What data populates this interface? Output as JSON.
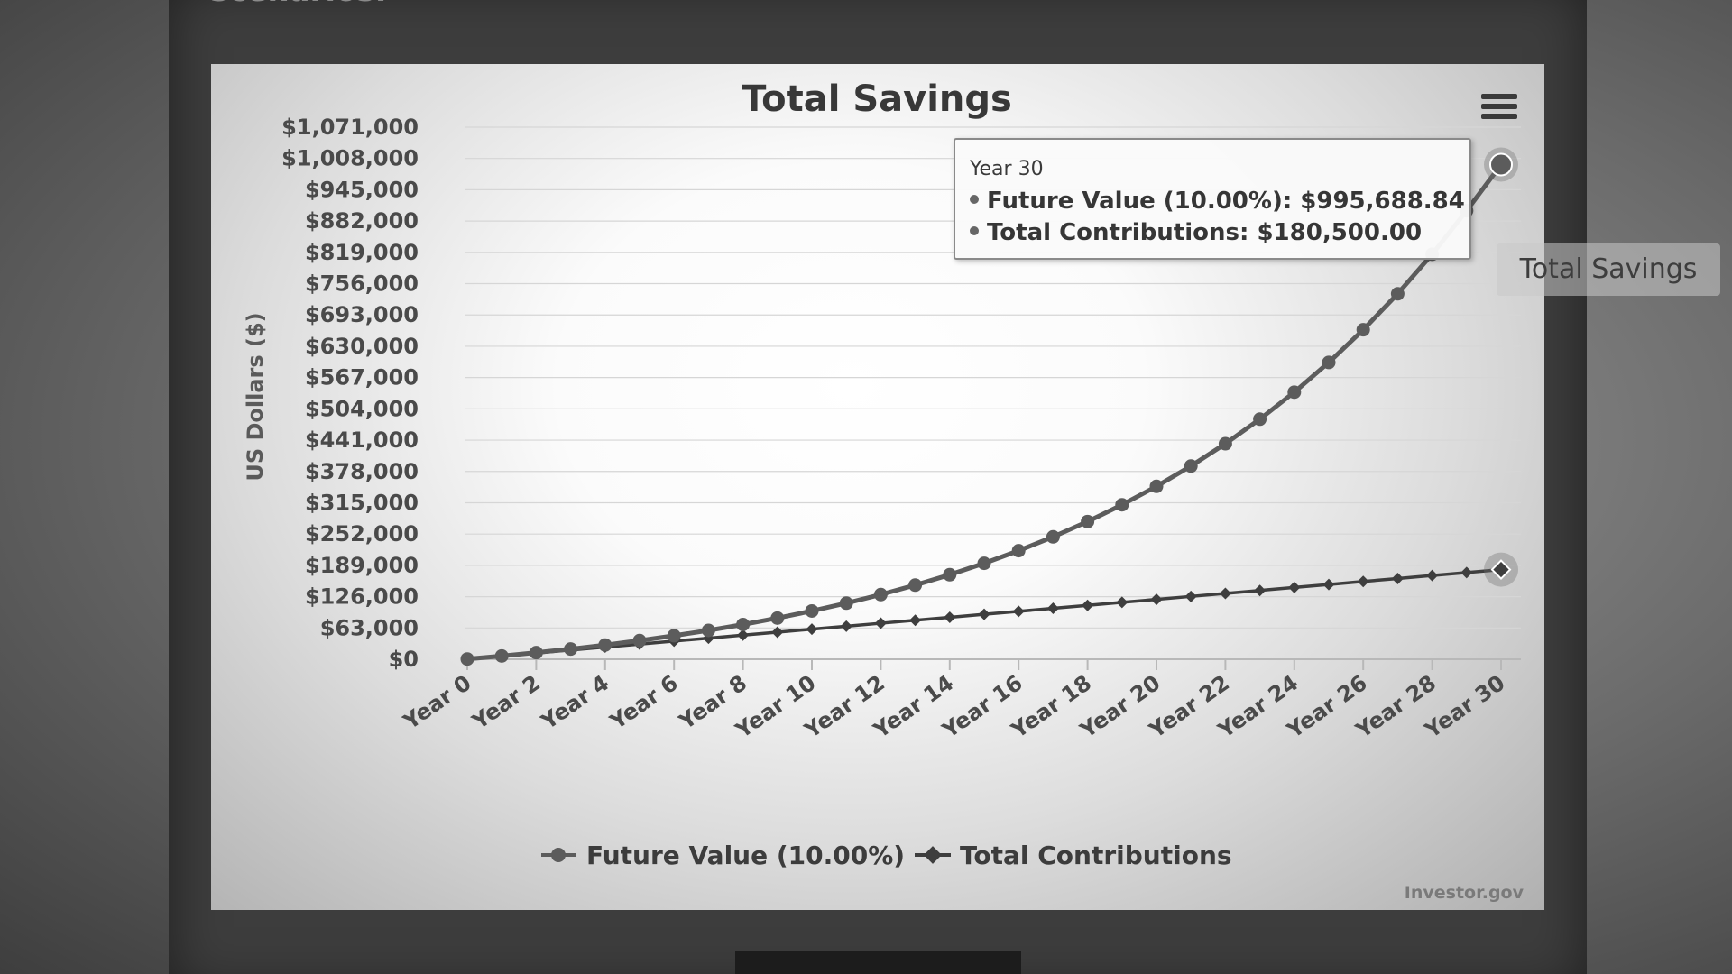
{
  "page": {
    "header_fragment": "scenarios.",
    "floating_label": "Total Savings"
  },
  "tooltip": {
    "header": "Year 30",
    "rows": [
      "Future Value (10.00%): $995,688.84",
      "Total Contributions: $180,500.00"
    ]
  },
  "credit": "Investor.gov",
  "colors": {
    "future_value": "#5c5c5c",
    "total_contributions": "#3e3e3e",
    "grid": "#d6d6d6"
  },
  "icons": {
    "menu": "hamburger-menu-icon"
  },
  "chart_data": {
    "type": "line",
    "title": "Total Savings",
    "ylabel": "US Dollars ($)",
    "xlabel": "",
    "ylim": [
      0,
      1071000
    ],
    "y_ticks": [
      0,
      63000,
      126000,
      189000,
      252000,
      315000,
      378000,
      441000,
      504000,
      567000,
      630000,
      693000,
      756000,
      819000,
      882000,
      945000,
      1008000,
      1071000
    ],
    "y_tick_labels": [
      "$0",
      "$63,000",
      "$126,000",
      "$189,000",
      "$252,000",
      "$315,000",
      "$378,000",
      "$441,000",
      "$504,000",
      "$567,000",
      "$630,000",
      "$693,000",
      "$756,000",
      "$819,000",
      "$882,000",
      "$945,000",
      "$1,008,000",
      "$1,071,000"
    ],
    "x": [
      0,
      1,
      2,
      3,
      4,
      5,
      6,
      7,
      8,
      9,
      10,
      11,
      12,
      13,
      14,
      15,
      16,
      17,
      18,
      19,
      20,
      21,
      22,
      23,
      24,
      25,
      26,
      27,
      28,
      29,
      30
    ],
    "x_tick_labels": [
      "Year 0",
      "Year 2",
      "Year 4",
      "Year 6",
      "Year 8",
      "Year 10",
      "Year 12",
      "Year 14",
      "Year 16",
      "Year 18",
      "Year 20",
      "Year 22",
      "Year 24",
      "Year 26",
      "Year 28",
      "Year 30"
    ],
    "series": [
      {
        "name": "Future Value (10.00%)",
        "marker": "circle",
        "values": [
          500,
          6600,
          13300,
          20600,
          28700,
          37600,
          47400,
          58100,
          69900,
          82900,
          97200,
          112900,
          130200,
          149200,
          170100,
          193100,
          218500,
          246400,
          277100,
          310900,
          348000,
          388900,
          433800,
          483200,
          537600,
          597400,
          663200,
          735600,
          815200,
          902800,
          995688.84
        ]
      },
      {
        "name": "Total Contributions",
        "marker": "diamond",
        "values": [
          500,
          6500,
          12500,
          18500,
          24500,
          30500,
          36500,
          42500,
          48500,
          54500,
          60500,
          66500,
          72500,
          78500,
          84500,
          90500,
          96500,
          102500,
          108500,
          114500,
          120500,
          126500,
          132500,
          138500,
          144500,
          150500,
          156500,
          162500,
          168500,
          174500,
          180500
        ]
      }
    ],
    "highlight_index": 30,
    "legend_position": "bottom-center",
    "grid": true
  }
}
